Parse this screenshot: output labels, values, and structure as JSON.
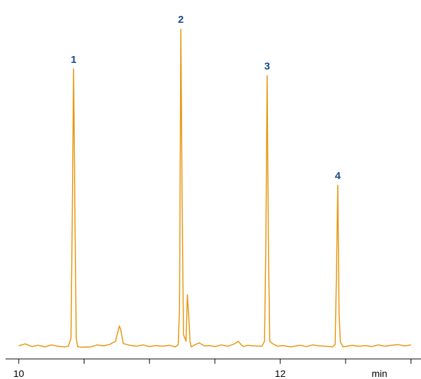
{
  "chart_data": {
    "type": "line",
    "title": "",
    "xlabel": "",
    "ylabel": "",
    "x_unit_label": "min",
    "xlim": [
      10.0,
      13.05
    ],
    "ylim": [
      0,
      100
    ],
    "x_ticks": [
      10.0,
      10.5,
      11.0,
      11.5,
      12.0,
      12.5,
      13.0
    ],
    "x_tick_labels": [
      {
        "value": 10,
        "label": "10"
      },
      {
        "value": 12,
        "label": "12"
      }
    ],
    "grid": false,
    "legend": "none",
    "series": [
      {
        "color": "#e8960f",
        "x": [
          10.0,
          10.05,
          10.1,
          10.15,
          10.2,
          10.25,
          10.3,
          10.35,
          10.38,
          10.4,
          10.41,
          10.42,
          10.43,
          10.44,
          10.45,
          10.48,
          10.55,
          10.6,
          10.65,
          10.7,
          10.74,
          10.77,
          10.78,
          10.8,
          10.85,
          10.9,
          10.95,
          11.0,
          11.05,
          11.1,
          11.15,
          11.2,
          11.22,
          11.23,
          11.24,
          11.25,
          11.26,
          11.28,
          11.29,
          11.3,
          11.31,
          11.32,
          11.34,
          11.38,
          11.42,
          11.46,
          11.5,
          11.55,
          11.6,
          11.65,
          11.68,
          11.7,
          11.72,
          11.75,
          11.8,
          11.86,
          11.88,
          11.89,
          11.9,
          11.91,
          11.92,
          11.94,
          11.98,
          12.02,
          12.08,
          12.15,
          12.2,
          12.25,
          12.3,
          12.35,
          12.4,
          12.42,
          12.43,
          12.44,
          12.45,
          12.46,
          12.48,
          12.55,
          12.6,
          12.65,
          12.7,
          12.75,
          12.8,
          12.85,
          12.9,
          12.95,
          13.0
        ],
        "y": [
          0.6,
          1.2,
          0.4,
          0.8,
          0.3,
          0.9,
          0.5,
          0.3,
          0.5,
          3.0,
          40.0,
          84.0,
          40.0,
          3.0,
          0.4,
          0.2,
          0.3,
          0.9,
          0.6,
          1.1,
          2.0,
          6.6,
          5.5,
          1.3,
          0.8,
          0.5,
          0.9,
          0.4,
          0.7,
          0.5,
          0.8,
          0.3,
          1.0,
          12.0,
          96.0,
          42.0,
          4.0,
          2.0,
          16.0,
          10.0,
          2.0,
          0.3,
          0.8,
          1.5,
          0.6,
          0.7,
          0.4,
          0.9,
          0.5,
          1.2,
          2.0,
          1.0,
          0.4,
          0.8,
          0.6,
          0.5,
          2.0,
          30.0,
          82.0,
          30.0,
          2.0,
          1.3,
          0.5,
          0.7,
          0.3,
          0.8,
          0.4,
          0.9,
          0.6,
          0.5,
          0.3,
          1.0,
          22.0,
          49.0,
          10.0,
          1.8,
          0.3,
          0.8,
          0.5,
          0.7,
          0.4,
          0.9,
          0.5,
          0.8,
          1.0,
          0.6,
          0.9
        ]
      }
    ],
    "annotations": [
      {
        "text": "1",
        "x": 10.42,
        "y": 84.0,
        "color": "#1a4a8a"
      },
      {
        "text": "2",
        "x": 11.24,
        "y": 96.0,
        "color": "#1a4a8a"
      },
      {
        "text": "3",
        "x": 11.9,
        "y": 82.0,
        "color": "#1a4a8a"
      },
      {
        "text": "4",
        "x": 12.44,
        "y": 49.0,
        "color": "#1a4a8a"
      }
    ]
  }
}
